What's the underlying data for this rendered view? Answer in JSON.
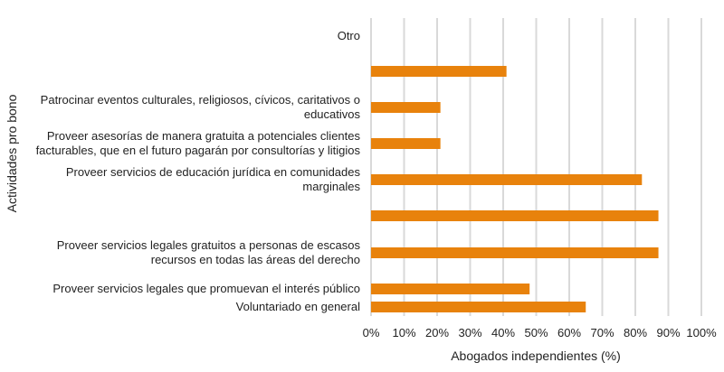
{
  "chart_data": {
    "type": "bar",
    "orientation": "horizontal",
    "title": "",
    "xlabel": "Abogados independientes (%)",
    "ylabel": "Actividades pro bono",
    "xlim": [
      0,
      100
    ],
    "xticks": [
      "0%",
      "10%",
      "20%",
      "30%",
      "40%",
      "50%",
      "60%",
      "70%",
      "80%",
      "90%",
      "100%"
    ],
    "grid": true,
    "bar_color": "#E8820C",
    "categories": [
      [
        "Otro"
      ],
      [
        ""
      ],
      [
        "Patrocinar eventos culturales, religiosos, cívicos, caritativos o",
        "educativos"
      ],
      [
        "Proveer asesorías de manera gratuita a potenciales clientes",
        "facturables, que en el futuro pagarán por consultorías y litigios"
      ],
      [
        "Proveer servicios de educación jurídica en comunidades",
        "marginales"
      ],
      [
        ""
      ],
      [
        "Proveer servicios legales gratuitos a personas de escasos",
        "recursos en todas las áreas del derecho"
      ],
      [
        "Proveer servicios legales que promuevan el interés público"
      ],
      [
        "Voluntariado en general"
      ]
    ],
    "values": [
      null,
      41,
      21,
      21,
      82,
      87,
      87,
      48,
      65
    ]
  }
}
